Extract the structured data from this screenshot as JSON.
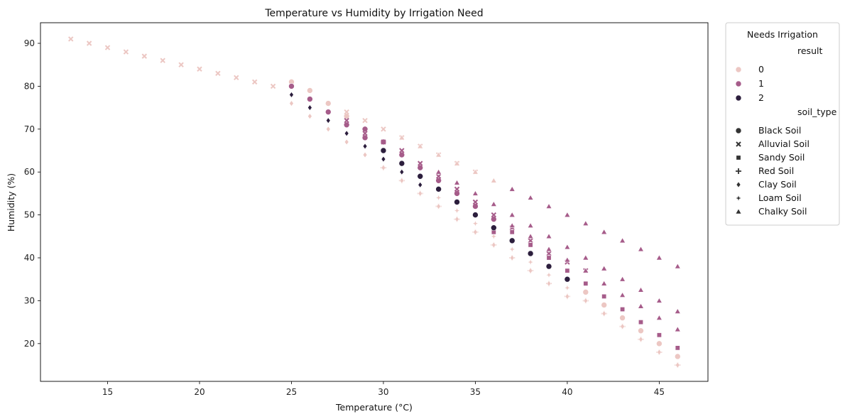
{
  "chart_data": {
    "type": "scatter",
    "title": "Temperature vs Humidity by Irrigation Need",
    "xlabel": "Temperature (°C)",
    "ylabel": "Humidity (%)",
    "xlim": [
      11.35,
      47.65
    ],
    "ylim": [
      11.2,
      94.8
    ],
    "xticks": [
      15,
      20,
      25,
      30,
      35,
      40,
      45
    ],
    "yticks": [
      20,
      30,
      40,
      50,
      60,
      70,
      80,
      90
    ],
    "grid": false,
    "legend": {
      "title": "Needs Irrigation",
      "placement": "outside-right",
      "hue_title": "result",
      "hue_entries": [
        {
          "label": "0",
          "color": "#ecc7c3"
        },
        {
          "label": "1",
          "color": "#a65c8a"
        },
        {
          "label": "2",
          "color": "#2c1e3d"
        }
      ],
      "style_title": "soil_type",
      "style_entries": [
        {
          "label": "Black Soil",
          "marker": "circle"
        },
        {
          "label": "Alluvial Soil",
          "marker": "x"
        },
        {
          "label": "Sandy Soil",
          "marker": "square"
        },
        {
          "label": "Red Soil",
          "marker": "plus"
        },
        {
          "label": "Clay Soil",
          "marker": "diamond"
        },
        {
          "label": "Loam Soil",
          "marker": "star"
        },
        {
          "label": "Chalky Soil",
          "marker": "triangle"
        }
      ]
    },
    "series": [
      {
        "soil": "Black Soil",
        "marker": "circle",
        "points": [
          [
            25,
            81,
            0
          ],
          [
            26,
            79,
            0
          ],
          [
            27,
            76,
            0
          ],
          [
            28,
            73,
            0
          ],
          [
            29,
            70,
            1
          ],
          [
            30,
            67,
            1
          ],
          [
            31,
            64,
            1
          ],
          [
            32,
            61,
            1
          ],
          [
            33,
            56,
            2
          ],
          [
            34,
            53,
            2
          ],
          [
            35,
            50,
            2
          ],
          [
            36,
            47,
            2
          ],
          [
            37,
            44,
            2
          ],
          [
            38,
            41,
            2
          ],
          [
            39,
            38,
            2
          ],
          [
            40,
            35,
            2
          ],
          [
            41,
            32,
            0
          ],
          [
            42,
            29,
            0
          ],
          [
            43,
            26,
            0
          ],
          [
            44,
            23,
            0
          ],
          [
            45,
            20,
            0
          ],
          [
            46,
            17,
            0
          ],
          [
            25,
            80,
            1
          ],
          [
            26,
            77,
            1
          ],
          [
            27,
            74,
            1
          ],
          [
            28,
            71,
            1
          ],
          [
            29,
            68,
            1
          ],
          [
            30,
            65,
            2
          ],
          [
            31,
            62,
            2
          ],
          [
            32,
            59,
            2
          ],
          [
            33,
            58,
            1
          ],
          [
            34,
            55,
            1
          ],
          [
            35,
            52,
            1
          ],
          [
            36,
            49,
            1
          ]
        ]
      },
      {
        "soil": "Alluvial Soil",
        "marker": "x",
        "points": [
          [
            13,
            91,
            0
          ],
          [
            14,
            90,
            0
          ],
          [
            15,
            89,
            0
          ],
          [
            16,
            88,
            0
          ],
          [
            17,
            87,
            0
          ],
          [
            18,
            86,
            0
          ],
          [
            19,
            85,
            0
          ],
          [
            20,
            84,
            0
          ],
          [
            21,
            83,
            0
          ],
          [
            22,
            82,
            0
          ],
          [
            23,
            81,
            0
          ],
          [
            24,
            80,
            0
          ],
          [
            28,
            74,
            0
          ],
          [
            29,
            72,
            0
          ],
          [
            30,
            70,
            0
          ],
          [
            31,
            68,
            0
          ],
          [
            32,
            66,
            0
          ],
          [
            33,
            64,
            0
          ],
          [
            34,
            62,
            0
          ],
          [
            35,
            60,
            0
          ],
          [
            28,
            72,
            1
          ],
          [
            29,
            69,
            1
          ],
          [
            30,
            67,
            1
          ],
          [
            31,
            65,
            1
          ],
          [
            32,
            62,
            1
          ],
          [
            33,
            59,
            1
          ],
          [
            34,
            56,
            1
          ],
          [
            35,
            53,
            1
          ],
          [
            36,
            50,
            1
          ],
          [
            37,
            47,
            1
          ],
          [
            38,
            44,
            1
          ],
          [
            39,
            41,
            1
          ],
          [
            40,
            39,
            1
          ],
          [
            41,
            37,
            1
          ]
        ]
      },
      {
        "soil": "Sandy Soil",
        "marker": "square",
        "points": [
          [
            36,
            46,
            1
          ],
          [
            37,
            46,
            1
          ],
          [
            38,
            43,
            1
          ],
          [
            39,
            40,
            1
          ],
          [
            40,
            37,
            1
          ],
          [
            41,
            34,
            1
          ],
          [
            42,
            31,
            1
          ],
          [
            43,
            28,
            1
          ],
          [
            44,
            25,
            1
          ],
          [
            45,
            22,
            1
          ],
          [
            46,
            19,
            1
          ]
        ]
      },
      {
        "soil": "Red Soil",
        "marker": "plus",
        "points": [
          [
            30,
            61,
            0
          ],
          [
            31,
            58,
            0
          ],
          [
            32,
            55,
            0
          ],
          [
            33,
            52,
            0
          ],
          [
            34,
            49,
            0
          ],
          [
            35,
            46,
            0
          ],
          [
            36,
            43,
            0
          ],
          [
            37,
            40,
            0
          ],
          [
            38,
            37,
            0
          ],
          [
            39,
            34,
            0
          ],
          [
            40,
            31,
            0
          ],
          [
            41,
            30,
            0
          ],
          [
            42,
            27,
            0
          ],
          [
            43,
            24,
            0
          ],
          [
            44,
            21,
            0
          ],
          [
            45,
            18,
            0
          ],
          [
            46,
            15,
            0
          ]
        ]
      },
      {
        "soil": "Clay Soil",
        "marker": "diamond",
        "points": [
          [
            25,
            76,
            0
          ],
          [
            26,
            73,
            0
          ],
          [
            27,
            70,
            0
          ],
          [
            28,
            67,
            0
          ],
          [
            29,
            64,
            0
          ],
          [
            30,
            61,
            0
          ],
          [
            31,
            58,
            0
          ],
          [
            32,
            55,
            0
          ],
          [
            33,
            52,
            0
          ],
          [
            34,
            49,
            0
          ],
          [
            35,
            46,
            0
          ],
          [
            36,
            43,
            0
          ],
          [
            37,
            40,
            0
          ],
          [
            38,
            37,
            0
          ],
          [
            39,
            34,
            0
          ],
          [
            40,
            31,
            0
          ],
          [
            41,
            30,
            0
          ],
          [
            42,
            27,
            0
          ],
          [
            43,
            24,
            0
          ],
          [
            44,
            21,
            0
          ],
          [
            45,
            18,
            0
          ],
          [
            46,
            15,
            0
          ],
          [
            25,
            78,
            2
          ],
          [
            26,
            75,
            2
          ],
          [
            27,
            72,
            2
          ],
          [
            28,
            69,
            2
          ],
          [
            29,
            66,
            2
          ],
          [
            30,
            63,
            2
          ],
          [
            31,
            60,
            2
          ],
          [
            32,
            57,
            2
          ]
        ]
      },
      {
        "soil": "Loam Soil",
        "marker": "star",
        "points": [
          [
            33,
            54,
            0
          ],
          [
            34,
            51,
            0
          ],
          [
            35,
            48,
            0
          ],
          [
            36,
            45,
            0
          ],
          [
            37,
            42,
            0
          ],
          [
            38,
            39,
            0
          ],
          [
            39,
            36,
            0
          ],
          [
            40,
            33,
            0
          ]
        ]
      },
      {
        "soil": "Chalky Soil",
        "marker": "triangle",
        "points": [
          [
            31,
            68,
            0
          ],
          [
            32,
            66,
            0
          ],
          [
            33,
            64,
            0
          ],
          [
            34,
            62,
            0
          ],
          [
            35,
            60,
            0
          ],
          [
            36,
            58,
            0
          ],
          [
            33,
            60,
            1
          ],
          [
            34,
            57.5,
            1
          ],
          [
            35,
            55,
            1
          ],
          [
            36,
            52.5,
            1
          ],
          [
            37,
            50,
            1
          ],
          [
            38,
            47.5,
            1
          ],
          [
            39,
            45,
            1
          ],
          [
            40,
            42.5,
            1
          ],
          [
            41,
            40,
            1
          ],
          [
            42,
            37.5,
            1
          ],
          [
            43,
            35,
            1
          ],
          [
            44,
            32.5,
            1
          ],
          [
            45,
            30,
            1
          ],
          [
            46,
            27.5,
            1
          ],
          [
            37,
            56,
            1
          ],
          [
            38,
            54,
            1
          ],
          [
            39,
            52,
            1
          ],
          [
            40,
            50,
            1
          ],
          [
            41,
            48,
            1
          ],
          [
            42,
            46,
            1
          ],
          [
            43,
            44,
            1
          ],
          [
            44,
            42,
            1
          ],
          [
            45,
            40,
            1
          ],
          [
            46,
            38,
            1
          ],
          [
            37,
            47.5,
            1
          ],
          [
            38,
            45,
            1
          ],
          [
            39,
            42,
            1
          ],
          [
            40,
            39.5,
            1
          ],
          [
            41,
            37,
            1
          ],
          [
            42,
            34,
            1
          ],
          [
            43,
            31.3,
            1
          ],
          [
            44,
            28.7,
            1
          ],
          [
            45,
            26,
            1
          ],
          [
            46,
            23.3,
            1
          ]
        ]
      }
    ]
  }
}
